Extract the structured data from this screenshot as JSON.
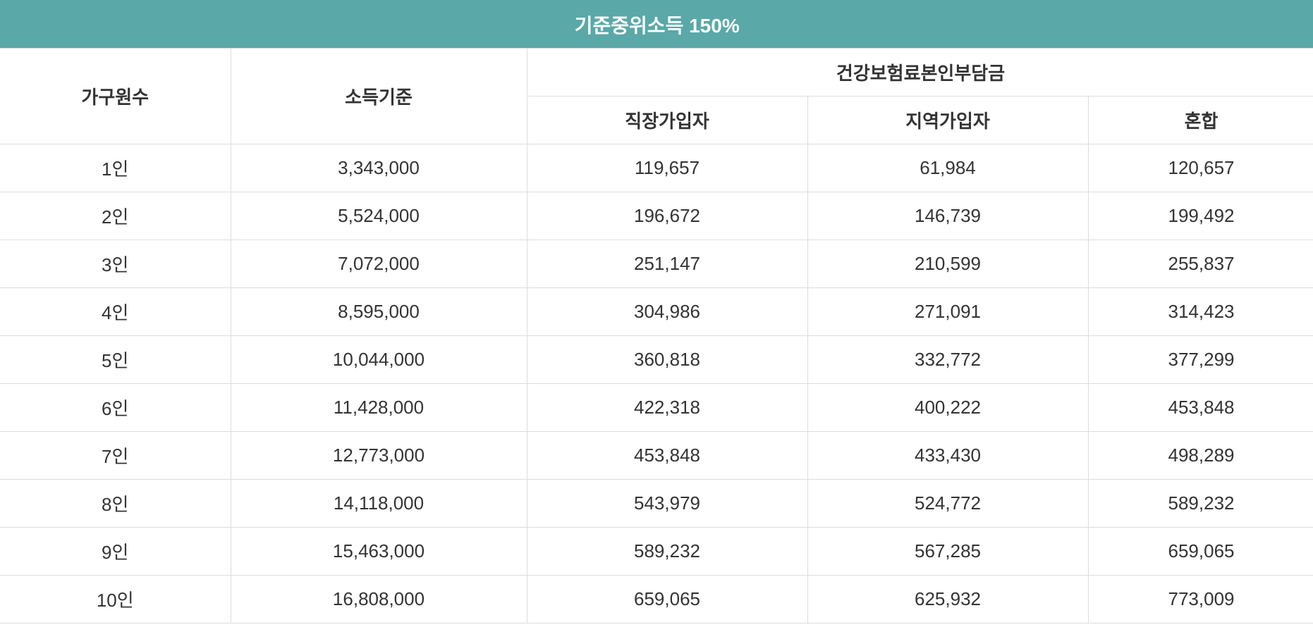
{
  "table": {
    "title": "기준중위소득 150%",
    "headers": {
      "household": "가구원수",
      "income": "소득기준",
      "premium_group": "건강보험료본인부담금",
      "workplace": "직장가입자",
      "regional": "지역가입자",
      "mixed": "혼합"
    },
    "rows": [
      {
        "household": "1인",
        "income": "3,343,000",
        "workplace": "119,657",
        "regional": "61,984",
        "mixed": "120,657"
      },
      {
        "household": "2인",
        "income": "5,524,000",
        "workplace": "196,672",
        "regional": "146,739",
        "mixed": "199,492"
      },
      {
        "household": "3인",
        "income": "7,072,000",
        "workplace": "251,147",
        "regional": "210,599",
        "mixed": "255,837"
      },
      {
        "household": "4인",
        "income": "8,595,000",
        "workplace": "304,986",
        "regional": "271,091",
        "mixed": "314,423"
      },
      {
        "household": "5인",
        "income": "10,044,000",
        "workplace": "360,818",
        "regional": "332,772",
        "mixed": "377,299"
      },
      {
        "household": "6인",
        "income": "11,428,000",
        "workplace": "422,318",
        "regional": "400,222",
        "mixed": "453,848"
      },
      {
        "household": "7인",
        "income": "12,773,000",
        "workplace": "453,848",
        "regional": "433,430",
        "mixed": "498,289"
      },
      {
        "household": "8인",
        "income": "14,118,000",
        "workplace": "543,979",
        "regional": "524,772",
        "mixed": "589,232"
      },
      {
        "household": "9인",
        "income": "15,463,000",
        "workplace": "589,232",
        "regional": "567,285",
        "mixed": "659,065"
      },
      {
        "household": "10인",
        "income": "16,808,000",
        "workplace": "659,065",
        "regional": "625,932",
        "mixed": "773,009"
      }
    ]
  },
  "colors": {
    "header_background": "#5aa8a8",
    "header_text": "#ffffff",
    "border": "#dddddd",
    "body_text": "#333333"
  }
}
